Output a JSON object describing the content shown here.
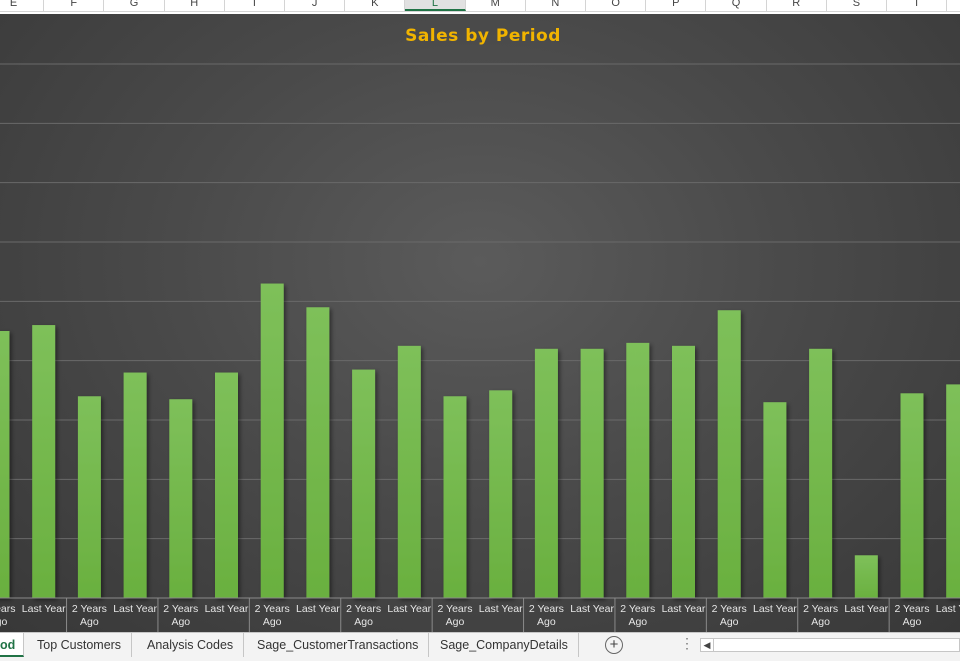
{
  "columns": [
    "E",
    "F",
    "G",
    "H",
    "I",
    "J",
    "K",
    "L",
    "M",
    "N",
    "O",
    "P",
    "Q",
    "R",
    "S",
    "T"
  ],
  "active_column": "L",
  "chart_data": {
    "type": "bar",
    "title": "Sales by Period",
    "bar_color": "#6ab03f",
    "title_color": "#f1b400",
    "grid": true,
    "categories": [
      "2 Years Ago",
      "Last Year",
      "2 Years Ago",
      "Last Year",
      "2 Years Ago",
      "Last Year",
      "2 Years Ago",
      "Last Year",
      "2 Years Ago",
      "Last Year",
      "2 Years Ago",
      "Last Year",
      "2 Years Ago",
      "Last Year",
      "2 Years Ago",
      "Last Year",
      "2 Years Ago",
      "Last Year",
      "2 Years Ago",
      "Last Year",
      "2 Years Ago",
      "Last Year"
    ],
    "values": [
      4.5,
      4.6,
      3.4,
      3.8,
      3.35,
      3.8,
      5.3,
      4.9,
      3.85,
      4.25,
      3.4,
      3.5,
      4.2,
      4.2,
      4.3,
      4.25,
      4.85,
      3.3,
      4.2,
      0.72,
      3.45,
      3.6
    ],
    "ylim": [
      0,
      9
    ]
  },
  "sheet_tabs": {
    "active": "od",
    "tabs": [
      "Top Customers",
      "Analysis Codes",
      "Sage_CustomerTransactions",
      "Sage_CompanyDetails"
    ],
    "add_symbol": "+",
    "more_symbol": "⋮",
    "scroll_left_symbol": "◀"
  }
}
